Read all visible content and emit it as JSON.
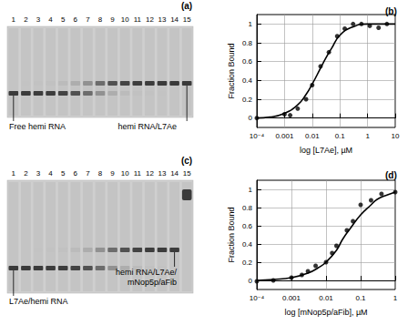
{
  "chart_data": [
    {
      "type": "scatter",
      "title": "(b)",
      "x_label": "log [L7Ae], µM",
      "y_label": "Fraction Bound",
      "log": "x",
      "grid": true,
      "xlim": [
        0.0001,
        10
      ],
      "xticks": [
        {
          "value": 0.0001,
          "label": "10⁻⁴"
        },
        0.001,
        0.01,
        0.1,
        1,
        10
      ],
      "ylim": [
        -0.1,
        1.1
      ],
      "yticks": [
        0,
        0.2,
        0.4,
        0.6,
        0.8,
        1
      ],
      "series": [
        {
          "type": "scatter",
          "marker": "circle",
          "color": "#000000",
          "x": [
            0.0001,
            0.001,
            0.0016,
            0.003,
            0.006,
            0.01,
            0.02,
            0.04,
            0.08,
            0.15,
            0.3,
            0.6,
            1.2,
            2.5,
            5
          ],
          "values": [
            0.0,
            0.04,
            0.03,
            0.1,
            0.2,
            0.35,
            0.55,
            0.7,
            0.87,
            0.95,
            1.0,
            1.0,
            0.98,
            0.96,
            1.0
          ]
        },
        {
          "type": "line",
          "line_style": "solid",
          "color": "#000000",
          "x": [
            0.0001,
            0.0003,
            0.001,
            0.003,
            0.006,
            0.01,
            0.02,
            0.03,
            0.05,
            0.1,
            0.3,
            1,
            10
          ],
          "values": [
            0.0,
            0.01,
            0.05,
            0.14,
            0.25,
            0.36,
            0.53,
            0.63,
            0.74,
            0.88,
            0.97,
            1.0,
            1.0
          ]
        }
      ]
    },
    {
      "type": "scatter",
      "title": "(d)",
      "x_label": "log [mNop5p/aFib], µM",
      "y_label": "Fraction Bound",
      "log": "x",
      "grid": true,
      "xlim": [
        0.0001,
        1
      ],
      "xticks": [
        {
          "value": 0.0001,
          "label": "10⁻⁴"
        },
        0.001,
        0.01,
        0.1,
        1
      ],
      "ylim": [
        -0.1,
        1.1
      ],
      "yticks": [
        0,
        0.2,
        0.4,
        0.6,
        0.8,
        1
      ],
      "series": [
        {
          "type": "scatter",
          "marker": "circle",
          "color": "#000000",
          "x": [
            0.0001,
            0.0003,
            0.001,
            0.002,
            0.003,
            0.005,
            0.01,
            0.015,
            0.02,
            0.04,
            0.06,
            0.1,
            0.2,
            0.4,
            1
          ],
          "values": [
            -0.01,
            0.0,
            0.03,
            0.06,
            0.1,
            0.16,
            0.2,
            0.3,
            0.38,
            0.55,
            0.65,
            0.83,
            0.88,
            0.95,
            0.97
          ]
        },
        {
          "type": "line",
          "line_style": "solid",
          "color": "#000000",
          "x": [
            0.0001,
            0.0003,
            0.001,
            0.003,
            0.006,
            0.01,
            0.02,
            0.03,
            0.05,
            0.1,
            0.2,
            0.3,
            0.6,
            1
          ],
          "values": [
            0.0,
            0.01,
            0.03,
            0.08,
            0.14,
            0.2,
            0.33,
            0.45,
            0.57,
            0.72,
            0.83,
            0.89,
            0.94,
            0.97
          ]
        }
      ]
    }
  ],
  "gels": [
    {
      "title": "(a)",
      "lanes": [
        1,
        2,
        3,
        4,
        5,
        6,
        7,
        8,
        9,
        10,
        11,
        12,
        13,
        14,
        15
      ],
      "lower_label": [
        "Free hemi RNA"
      ],
      "upper_label": [
        "hemi RNA/L7Ae"
      ]
    },
    {
      "title": "(c)",
      "lanes": [
        1,
        2,
        3,
        4,
        5,
        6,
        7,
        8,
        9,
        10,
        11,
        12,
        13,
        14,
        15
      ],
      "lower_label": [
        "L7Ae/hemi RNA"
      ],
      "upper_label": [
        "hemi RNA/L7Ae/",
        "mNop5p/aFib"
      ]
    }
  ]
}
